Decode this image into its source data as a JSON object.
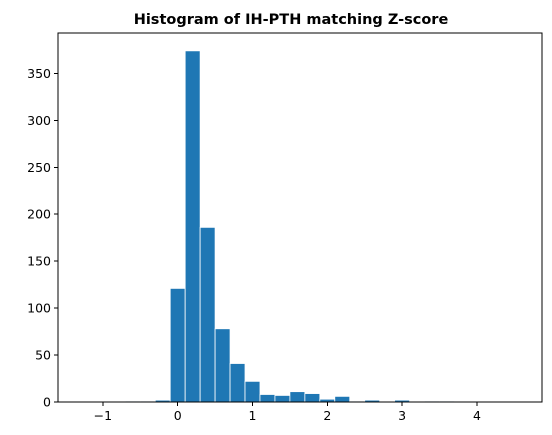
{
  "chart_data": {
    "type": "bar",
    "title": "Histogram of IH-PTH matching Z-score",
    "xlabel": "",
    "ylabel": "",
    "bar_color": "#1f77b4",
    "edge_color": "#ffffff",
    "xlim": [
      -1.6,
      4.87
    ],
    "ylim": [
      0,
      393
    ],
    "xticks": [
      -1,
      0,
      1,
      2,
      3,
      4
    ],
    "xtick_labels": [
      "−1",
      "0",
      "1",
      "2",
      "3",
      "4"
    ],
    "yticks": [
      0,
      50,
      100,
      150,
      200,
      250,
      300,
      350
    ],
    "ytick_labels": [
      "0",
      "50",
      "100",
      "150",
      "200",
      "250",
      "300",
      "350"
    ],
    "bins": [
      {
        "start": -1.3,
        "end": -1.1,
        "count": 0
      },
      {
        "start": -1.1,
        "end": -0.9,
        "count": 0
      },
      {
        "start": -0.9,
        "end": -0.7,
        "count": 0
      },
      {
        "start": -0.7,
        "end": -0.5,
        "count": 1
      },
      {
        "start": -0.5,
        "end": -0.3,
        "count": 1
      },
      {
        "start": -0.3,
        "end": -0.1,
        "count": 2
      },
      {
        "start": -0.1,
        "end": 0.1,
        "count": 121
      },
      {
        "start": 0.1,
        "end": 0.3,
        "count": 374
      },
      {
        "start": 0.3,
        "end": 0.5,
        "count": 186
      },
      {
        "start": 0.5,
        "end": 0.7,
        "count": 78
      },
      {
        "start": 0.7,
        "end": 0.9,
        "count": 41
      },
      {
        "start": 0.9,
        "end": 1.1,
        "count": 22
      },
      {
        "start": 1.1,
        "end": 1.3,
        "count": 8
      },
      {
        "start": 1.3,
        "end": 1.5,
        "count": 7
      },
      {
        "start": 1.5,
        "end": 1.7,
        "count": 11
      },
      {
        "start": 1.7,
        "end": 1.9,
        "count": 9
      },
      {
        "start": 1.9,
        "end": 2.1,
        "count": 3
      },
      {
        "start": 2.1,
        "end": 2.3,
        "count": 6
      },
      {
        "start": 2.3,
        "end": 2.5,
        "count": 1
      },
      {
        "start": 2.5,
        "end": 2.7,
        "count": 2
      },
      {
        "start": 2.7,
        "end": 2.9,
        "count": 0
      },
      {
        "start": 2.9,
        "end": 3.1,
        "count": 2
      },
      {
        "start": 3.1,
        "end": 3.3,
        "count": 0
      },
      {
        "start": 3.3,
        "end": 3.5,
        "count": 1
      },
      {
        "start": 3.5,
        "end": 3.7,
        "count": 1
      },
      {
        "start": 3.7,
        "end": 3.9,
        "count": 0
      },
      {
        "start": 3.9,
        "end": 4.1,
        "count": 0
      },
      {
        "start": 4.1,
        "end": 4.3,
        "count": 0
      },
      {
        "start": 4.3,
        "end": 4.5,
        "count": 0
      },
      {
        "start": 4.5,
        "end": 4.7,
        "count": 0
      }
    ],
    "grid": false,
    "legend": "none"
  }
}
